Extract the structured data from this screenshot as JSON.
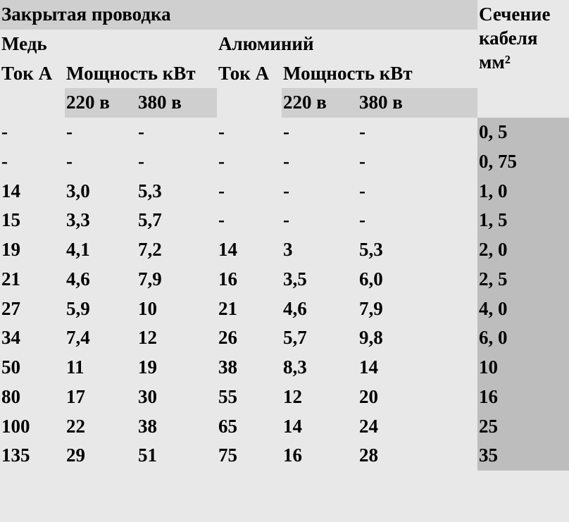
{
  "background_color": "#e8e8e8",
  "header_bg": "#cfcfcf",
  "section_col_bg": "#bdbdbd",
  "font_family": "Times New Roman",
  "font_size_pt": 20,
  "header": {
    "title": "Закрытая проводка",
    "section_label": "Сечение кабеля мм²",
    "material1": "Медь",
    "material2": "Алюминий",
    "current_label": "Ток А",
    "power_label": "Мощность кВт",
    "volt1": "220 в",
    "volt2": "380 в"
  },
  "rows": [
    {
      "cu_a": "-",
      "cu_220": "-",
      "cu_380": "-",
      "al_a": "-",
      "al_220": "-",
      "al_380": "-",
      "sec": "0, 5"
    },
    {
      "cu_a": "-",
      "cu_220": "-",
      "cu_380": "-",
      "al_a": "-",
      "al_220": "-",
      "al_380": "-",
      "sec": "0, 75"
    },
    {
      "cu_a": "14",
      "cu_220": "3,0",
      "cu_380": "5,3",
      "al_a": "-",
      "al_220": "-",
      "al_380": "-",
      "sec": "1, 0"
    },
    {
      "cu_a": "15",
      "cu_220": "3,3",
      "cu_380": "5,7",
      "al_a": "-",
      "al_220": "-",
      "al_380": "-",
      "sec": "1, 5"
    },
    {
      "cu_a": "19",
      "cu_220": "4,1",
      "cu_380": "7,2",
      "al_a": "14",
      "al_220": "3",
      "al_380": "5,3",
      "sec": "2, 0"
    },
    {
      "cu_a": "21",
      "cu_220": "4,6",
      "cu_380": "7,9",
      "al_a": "16",
      "al_220": "3,5",
      "al_380": "6,0",
      "sec": "2, 5"
    },
    {
      "cu_a": "27",
      "cu_220": "5,9",
      "cu_380": "10",
      "al_a": "21",
      "al_220": "4,6",
      "al_380": "7,9",
      "sec": "4, 0"
    },
    {
      "cu_a": "34",
      "cu_220": "7,4",
      "cu_380": "12",
      "al_a": "26",
      "al_220": "5,7",
      "al_380": "9,8",
      "sec": "6, 0"
    },
    {
      "cu_a": "50",
      "cu_220": "11",
      "cu_380": "19",
      "al_a": "38",
      "al_220": "8,3",
      "al_380": "14",
      "sec": "10"
    },
    {
      "cu_a": "80",
      "cu_220": "17",
      "cu_380": "30",
      "al_a": "55",
      "al_220": "12",
      "al_380": "20",
      "sec": "16"
    },
    {
      "cu_a": "100",
      "cu_220": "22",
      "cu_380": "38",
      "al_a": "65",
      "al_220": "14",
      "al_380": "24",
      "sec": "25"
    },
    {
      "cu_a": "135",
      "cu_220": "29",
      "cu_380": "51",
      "al_a": "75",
      "al_220": "16",
      "al_380": "28",
      "sec": "35"
    }
  ]
}
